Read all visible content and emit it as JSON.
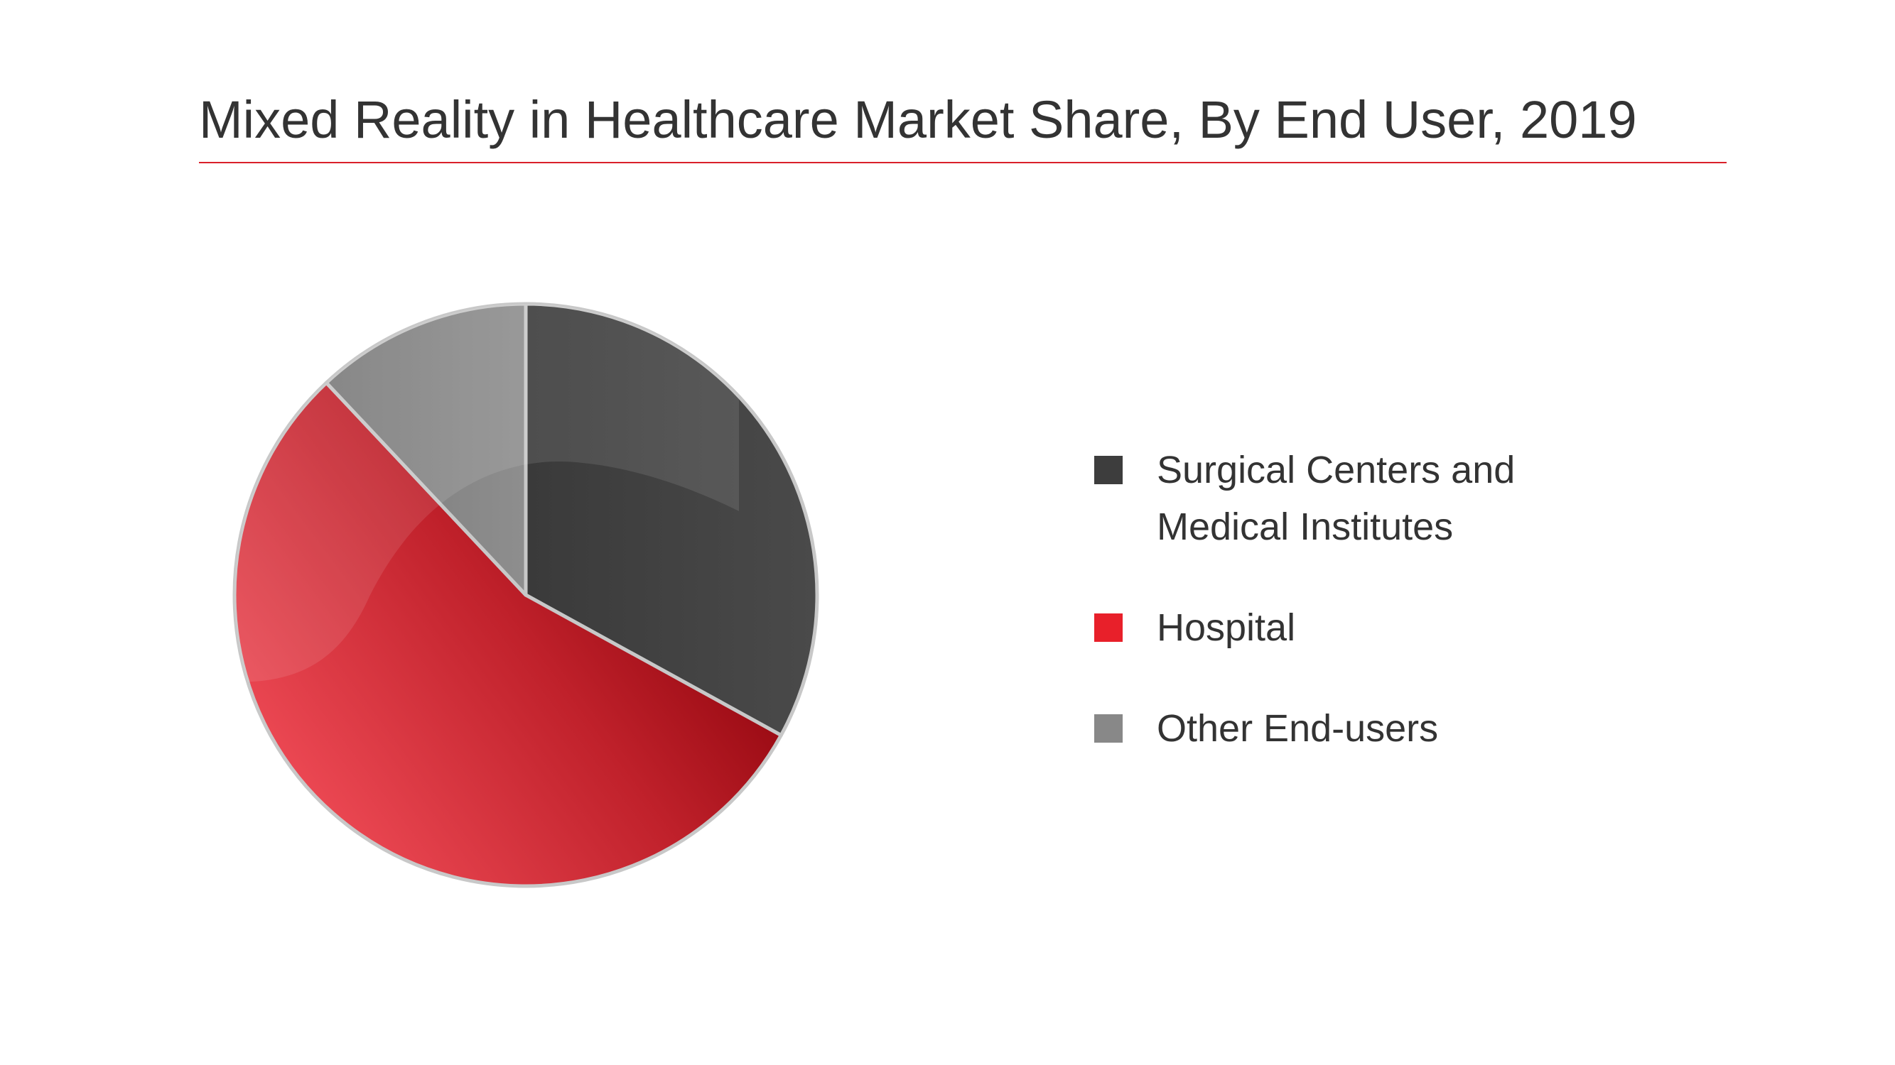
{
  "chart_data": {
    "type": "pie",
    "title": "Mixed Reality in Healthcare Market Share, By End User, 2019",
    "slices": [
      {
        "label": "Surgical Centers and\nMedical Institutes",
        "value": 33,
        "color": "#3d3d3d"
      },
      {
        "label": "Hospital",
        "value": 55,
        "color": "#e8202a"
      },
      {
        "label": "Other End-users",
        "value": 12,
        "color": "#888888"
      }
    ],
    "legend_position": "right",
    "start_angle": "12 o'clock",
    "direction": "clockwise"
  },
  "colors": {
    "title_rule": "#d9202a",
    "text": "#333333"
  }
}
